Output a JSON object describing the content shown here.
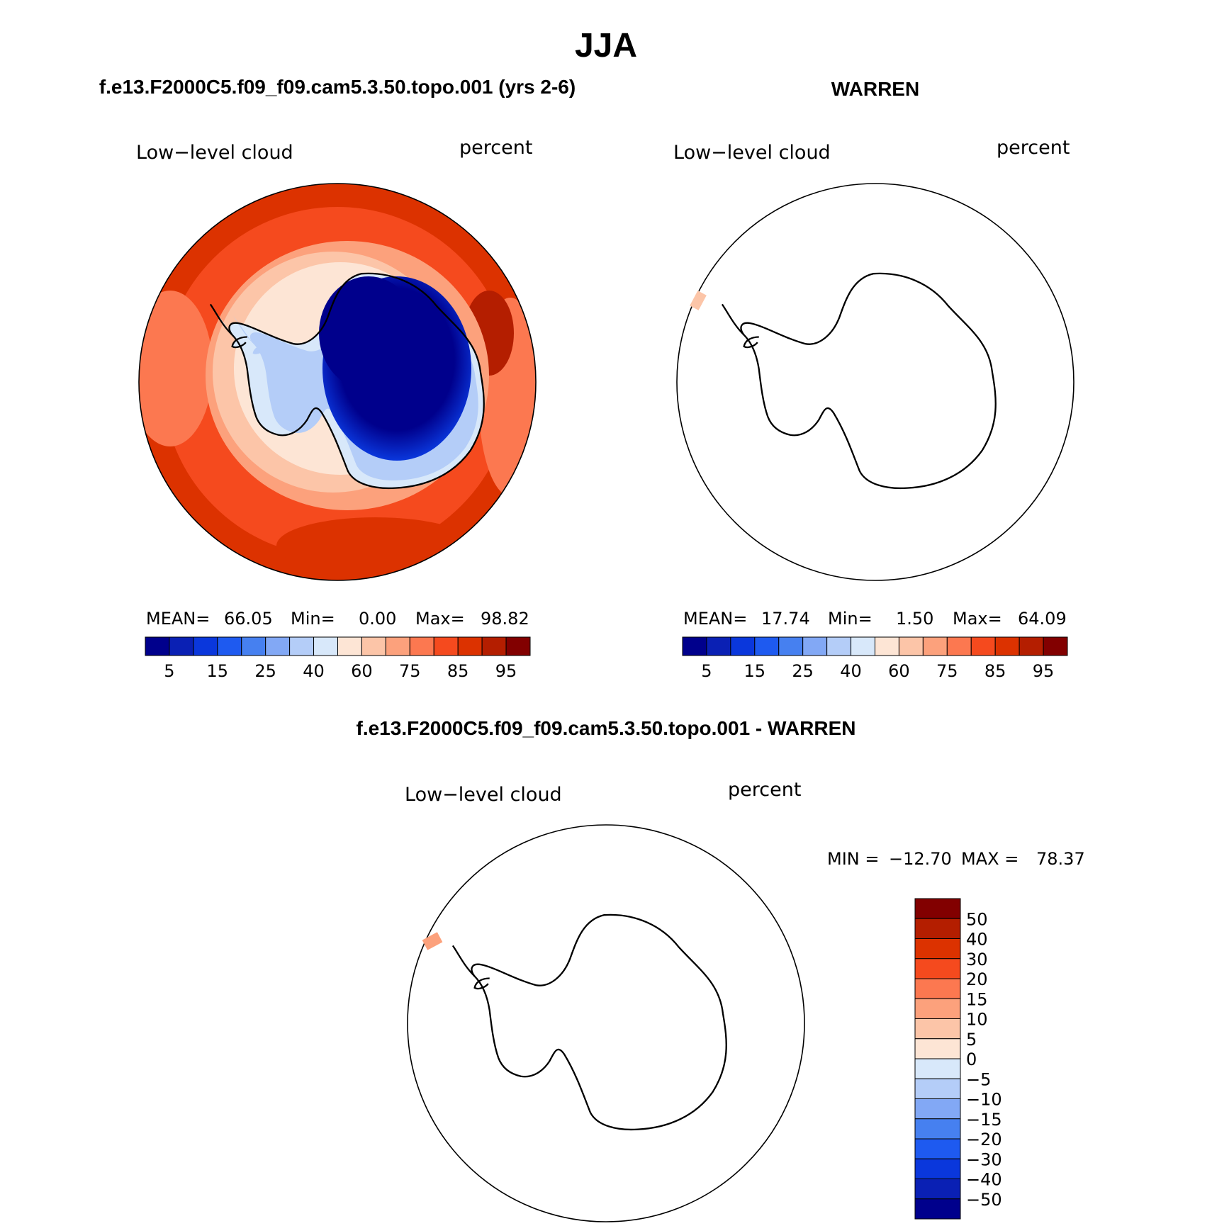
{
  "main_title": "JJA",
  "panels": [
    {
      "name": "model",
      "header": "f.e13.F2000C5.f09_f09.cam5.3.50.topo.001 (yrs 2-6)",
      "left_label": "Low−level cloud",
      "right_label": "percent",
      "stats": {
        "mean_label": "MEAN=",
        "mean": "66.05",
        "min_label": "Min=",
        "min": "0.00",
        "max_label": "Max=",
        "max": "98.82"
      }
    },
    {
      "name": "obs",
      "header": "WARREN",
      "left_label": "Low−level cloud",
      "right_label": "percent",
      "stats": {
        "mean_label": "MEAN=",
        "mean": "17.74",
        "min_label": "Min=",
        "min": "1.50",
        "max_label": "Max=",
        "max": "64.09"
      }
    },
    {
      "name": "difference",
      "header": "f.e13.F2000C5.f09_f09.cam5.3.50.topo.001 - WARREN",
      "left_label": "Low−level cloud",
      "right_label": "percent",
      "stats": {
        "min_label": "MIN =",
        "min": "−12.70",
        "max_label": "MAX =",
        "max": "78.37"
      }
    }
  ],
  "chart_data": [
    {
      "type": "heatmap",
      "title": "f.e13.F2000C5.f09_f09.cam5.3.50.topo.001 (yrs 2-6)",
      "projection": "south polar stereographic",
      "variable": "Low-level cloud",
      "units": "percent",
      "stats": {
        "mean": 66.05,
        "min": 0.0,
        "max": 98.82
      },
      "colorbar_tick_labels": [
        "5",
        "15",
        "25",
        "40",
        "60",
        "75",
        "85",
        "95"
      ],
      "colorbar_colors": [
        "#00008c",
        "#0a20b4",
        "#0a37dc",
        "#1e5af0",
        "#4680f0",
        "#82a8f5",
        "#b4cdf8",
        "#d8e8fa",
        "#fde5d5",
        "#fcc5a8",
        "#fca17c",
        "#fc7850",
        "#f54a1e",
        "#dc3200",
        "#b41e00",
        "#820000"
      ],
      "overview": "Ocean mostly 75-95 percent; Antarctic interior below 5 percent; coastal fringe 25-60 percent"
    },
    {
      "type": "heatmap",
      "title": "WARREN",
      "projection": "south polar stereographic",
      "variable": "Low-level cloud",
      "units": "percent",
      "stats": {
        "mean": 17.74,
        "min": 1.5,
        "max": 64.09
      },
      "colorbar_tick_labels": [
        "5",
        "15",
        "25",
        "40",
        "60",
        "75",
        "85",
        "95"
      ],
      "colorbar_colors": [
        "#00008c",
        "#0a20b4",
        "#0a37dc",
        "#1e5af0",
        "#4680f0",
        "#82a8f5",
        "#b4cdf8",
        "#d8e8fa",
        "#fde5d5",
        "#fcc5a8",
        "#fca17c",
        "#fc7850",
        "#f54a1e",
        "#dc3200",
        "#b41e00",
        "#820000"
      ],
      "overview": "Almost no data shown; single small patch near the outer edge"
    },
    {
      "type": "heatmap",
      "title": "f.e13.F2000C5.f09_f09.cam5.3.50.topo.001 - WARREN",
      "projection": "south polar stereographic",
      "variable": "Low-level cloud",
      "units": "percent",
      "stats": {
        "min": -12.7,
        "max": 78.37
      },
      "colorbar_tick_labels": [
        "50",
        "40",
        "30",
        "20",
        "15",
        "10",
        "5",
        "0",
        "−5",
        "−10",
        "−15",
        "−20",
        "−30",
        "−40",
        "−50"
      ],
      "colorbar_colors": [
        "#820000",
        "#b41e00",
        "#dc3200",
        "#f54a1e",
        "#fc7850",
        "#fca17c",
        "#fcc5a8",
        "#fde5d5",
        "#d8e8fa",
        "#b4cdf8",
        "#82a8f5",
        "#4680f0",
        "#1e5af0",
        "#0a37dc",
        "#0a20b4",
        "#00008c"
      ],
      "overview": "Almost no data shown; single small patch near the outer edge"
    }
  ]
}
